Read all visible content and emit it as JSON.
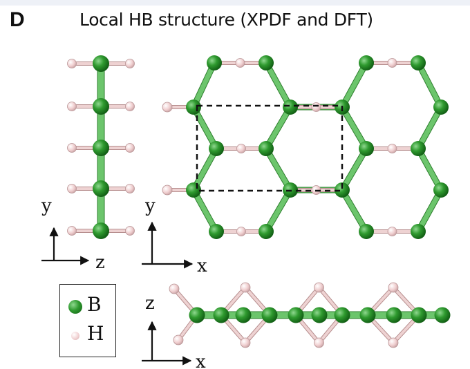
{
  "panel_letter": "D",
  "title": "Local HB structure (XPDF and DFT)",
  "views": {
    "side_view": {
      "vertical_axis": "y",
      "horizontal_axis": "z"
    },
    "top_view": {
      "vertical_axis": "y",
      "horizontal_axis": "x"
    },
    "edge_view": {
      "vertical_axis": "z",
      "horizontal_axis": "x"
    }
  },
  "legend": [
    {
      "symbol": "B",
      "color": "#2e8b2e"
    },
    {
      "symbol": "H",
      "color": "#f2cfd0"
    }
  ],
  "colors": {
    "boron": "#2e8b2e",
    "hydrogen": "#f2cfd0",
    "bond": "#5cb85c",
    "unit_cell": "#111111"
  }
}
